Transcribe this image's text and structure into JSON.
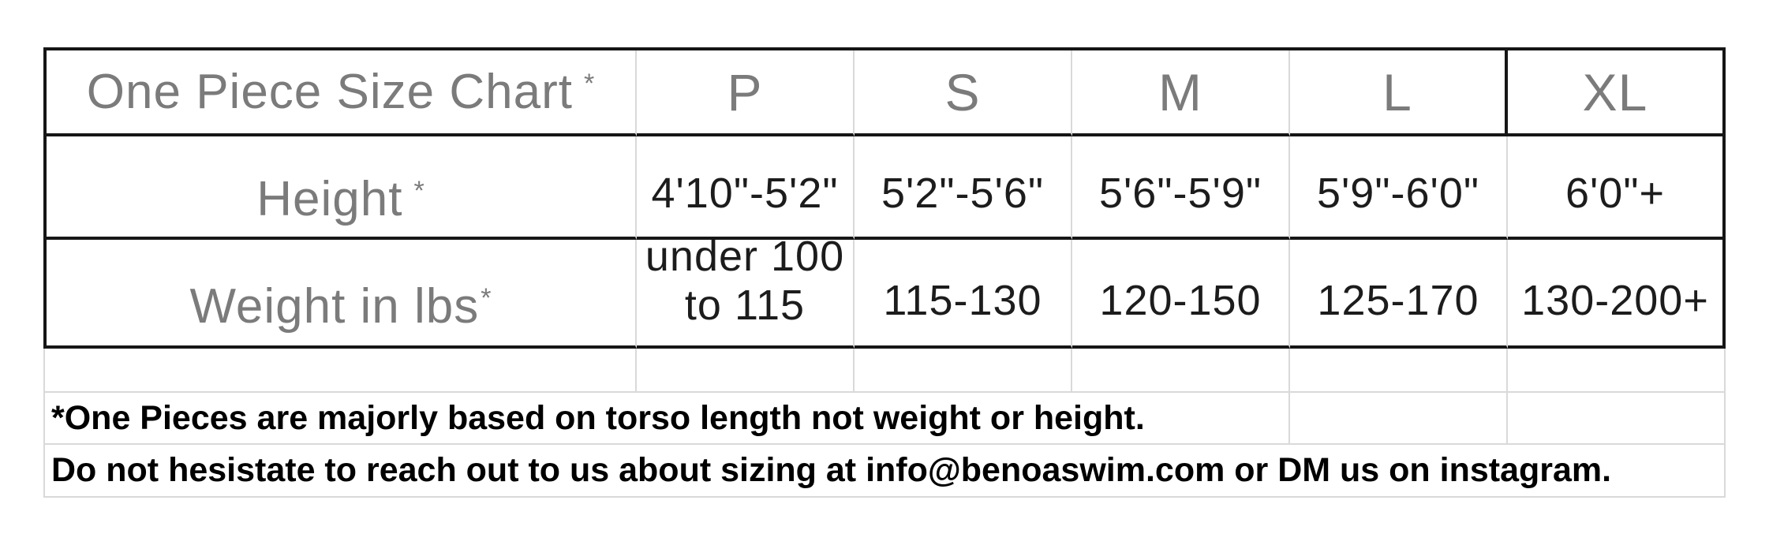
{
  "size_chart": {
    "header": {
      "title": "One Piece Size Chart",
      "title_asterisk": "*",
      "columns": [
        "P",
        "S",
        "M",
        "L",
        "XL"
      ]
    },
    "height_row": {
      "label": "Height",
      "asterisk": "*",
      "values": [
        "4'10\"-5'2\"",
        "5'2\"-5'6\"",
        "5'6\"-5'9\"",
        "5'9\"-6'0\"",
        "6'0\"+"
      ]
    },
    "weight_row": {
      "label": "Weight in lbs",
      "asterisk": "*",
      "p_value_line1": "under 100",
      "p_value_line2": "to 115",
      "s_value": "115-130",
      "m_value": "120-150",
      "l_value": "125-170",
      "xl_value": "130-200+"
    },
    "notes": [
      "*One Pieces are majorly based on torso length not weight or height.",
      "Do not hesistate to reach out to us about sizing at info@benoaswim.com or DM us on instagram."
    ],
    "colors": {
      "border_strong": "#161616",
      "border_light": "#d9d9d9",
      "label_text": "#7b7b7b",
      "value_text": "#1c1c1c",
      "note_text": "#000000",
      "background": "#ffffff"
    }
  }
}
